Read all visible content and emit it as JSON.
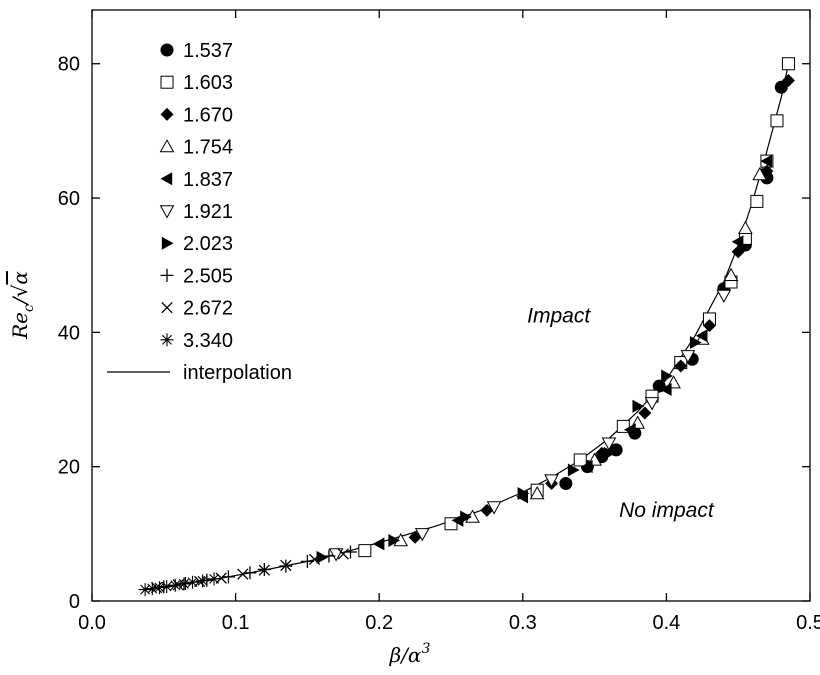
{
  "chart_data": {
    "type": "scatter",
    "title": "",
    "xlabel_main": "β/α",
    "xlabel_sup": "3",
    "ylabel_main": "Re",
    "ylabel_sub": "c",
    "ylabel_sep": "/",
    "ylabel_root": "√",
    "ylabel_rad": "α",
    "xlim": [
      0.0,
      0.5
    ],
    "ylim": [
      0,
      88
    ],
    "xticks": [
      0.0,
      0.1,
      0.2,
      0.3,
      0.4,
      0.5
    ],
    "xtick_labels": [
      "0.0",
      "0.1",
      "0.2",
      "0.3",
      "0.4",
      "0.5"
    ],
    "yticks": [
      0,
      20,
      40,
      60,
      80
    ],
    "ytick_labels": [
      "0",
      "20",
      "40",
      "60",
      "80"
    ],
    "grid": false,
    "legend_placement": "top-left",
    "annotations": [
      {
        "text": "Impact",
        "x": 0.325,
        "y": 41.5
      },
      {
        "text": "No impact",
        "x": 0.4,
        "y": 12.5
      }
    ],
    "interpolation": {
      "name": "interpolation",
      "x": [
        0.035,
        0.05,
        0.07,
        0.09,
        0.12,
        0.15,
        0.18,
        0.21,
        0.24,
        0.27,
        0.3,
        0.32,
        0.34,
        0.36,
        0.38,
        0.4,
        0.42,
        0.44,
        0.45,
        0.46,
        0.47,
        0.48,
        0.485
      ],
      "y": [
        1.7,
        2.1,
        2.8,
        3.4,
        4.6,
        5.9,
        7.5,
        9.3,
        11.2,
        13.4,
        16.2,
        18.4,
        21.0,
        24.2,
        28.2,
        33.0,
        39.5,
        47.5,
        53.0,
        59.5,
        67.0,
        75.0,
        80.0
      ]
    },
    "series": [
      {
        "name": "1.537",
        "marker": "circle-filled",
        "x": [
          0.33,
          0.345,
          0.355,
          0.365,
          0.378,
          0.395,
          0.418,
          0.44,
          0.455,
          0.47,
          0.48
        ],
        "y": [
          17.5,
          20.0,
          21.5,
          22.5,
          25.0,
          32.0,
          36.0,
          46.5,
          53.0,
          63.0,
          76.5
        ]
      },
      {
        "name": "1.603",
        "marker": "square-open",
        "x": [
          0.19,
          0.25,
          0.31,
          0.34,
          0.37,
          0.39,
          0.41,
          0.43,
          0.445,
          0.455,
          0.463,
          0.47,
          0.477,
          0.485
        ],
        "y": [
          7.5,
          11.5,
          16.5,
          21.0,
          26.0,
          30.5,
          35.5,
          42.0,
          47.5,
          54.0,
          59.5,
          65.5,
          71.5,
          80.0
        ]
      },
      {
        "name": "1.670",
        "marker": "diamond-filled",
        "x": [
          0.225,
          0.275,
          0.32,
          0.355,
          0.385,
          0.41,
          0.43,
          0.45,
          0.47,
          0.485
        ],
        "y": [
          9.5,
          13.5,
          17.5,
          22.0,
          28.0,
          35.0,
          41.0,
          52.0,
          64.0,
          77.5
        ]
      },
      {
        "name": "1.754",
        "marker": "triangle-up-open",
        "x": [
          0.215,
          0.265,
          0.31,
          0.35,
          0.38,
          0.405,
          0.425,
          0.445,
          0.455,
          0.465
        ],
        "y": [
          9.0,
          12.5,
          16.0,
          21.0,
          26.5,
          32.5,
          39.0,
          48.5,
          55.5,
          63.5
        ]
      },
      {
        "name": "1.837",
        "marker": "triangle-left-filled",
        "x": [
          0.2,
          0.255,
          0.3,
          0.345,
          0.375,
          0.4,
          0.425,
          0.45,
          0.47
        ],
        "y": [
          8.5,
          12.0,
          15.5,
          20.0,
          25.5,
          31.5,
          39.5,
          53.5,
          65.5
        ]
      },
      {
        "name": "1.921",
        "marker": "triangle-down-open",
        "x": [
          0.17,
          0.23,
          0.28,
          0.32,
          0.36,
          0.39,
          0.415,
          0.44
        ],
        "y": [
          7.0,
          10.0,
          14.0,
          18.0,
          23.5,
          29.5,
          36.5,
          45.5
        ]
      },
      {
        "name": "2.023",
        "marker": "triangle-right-filled",
        "x": [
          0.16,
          0.21,
          0.26,
          0.3,
          0.335,
          0.36,
          0.38,
          0.4,
          0.42
        ],
        "y": [
          6.5,
          9.0,
          12.5,
          16.0,
          19.5,
          22.0,
          29.0,
          33.5,
          38.5
        ]
      },
      {
        "name": "2.505",
        "marker": "plus",
        "x": [
          0.05,
          0.065,
          0.08,
          0.095,
          0.11,
          0.12,
          0.135,
          0.15,
          0.165,
          0.18
        ],
        "y": [
          2.1,
          2.6,
          3.1,
          3.6,
          4.2,
          4.7,
          5.2,
          5.9,
          6.7,
          7.3
        ]
      },
      {
        "name": "2.672",
        "marker": "cross",
        "x": [
          0.045,
          0.06,
          0.075,
          0.09,
          0.105,
          0.12,
          0.135,
          0.155,
          0.175
        ],
        "y": [
          2.0,
          2.4,
          2.9,
          3.4,
          4.0,
          4.6,
          5.3,
          6.2,
          7.0
        ]
      },
      {
        "name": "3.340",
        "marker": "asterisk",
        "x": [
          0.037,
          0.042,
          0.047,
          0.052,
          0.058,
          0.064,
          0.07,
          0.077,
          0.085
        ],
        "y": [
          1.7,
          1.85,
          2.0,
          2.15,
          2.35,
          2.55,
          2.8,
          3.0,
          3.3
        ]
      }
    ]
  }
}
